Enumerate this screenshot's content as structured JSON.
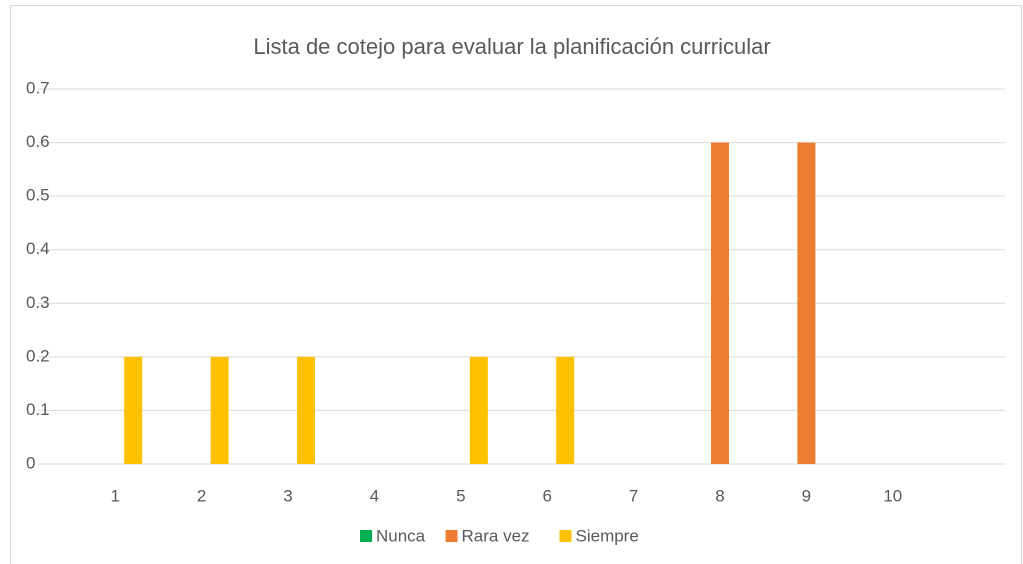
{
  "chart_data": {
    "type": "bar",
    "title": "Lista de cotejo para evaluar la planificación curricular",
    "categories": [
      "1",
      "2",
      "3",
      "4",
      "5",
      "6",
      "7",
      "8",
      "9",
      "10",
      null
    ],
    "series": [
      {
        "name": "Nunca",
        "color": "#00b050",
        "values": [
          0,
          0,
          0,
          0,
          0,
          0,
          0,
          0,
          0,
          0,
          null
        ]
      },
      {
        "name": "Rara vez",
        "color": "#ed7d31",
        "values": [
          0,
          0,
          0,
          0,
          0,
          0,
          0,
          0.6,
          0.6,
          0,
          null
        ]
      },
      {
        "name": "Siempre",
        "color": "#ffc000",
        "values": [
          0.2,
          0.2,
          0.2,
          0,
          0.2,
          0.2,
          0,
          0,
          0,
          0,
          null
        ]
      }
    ],
    "ylim": [
      0,
      0.7
    ],
    "yticks": [
      0,
      0.1,
      0.2,
      0.3,
      0.4,
      0.5,
      0.6,
      0.7
    ],
    "grid": true,
    "legend": "bottom"
  }
}
